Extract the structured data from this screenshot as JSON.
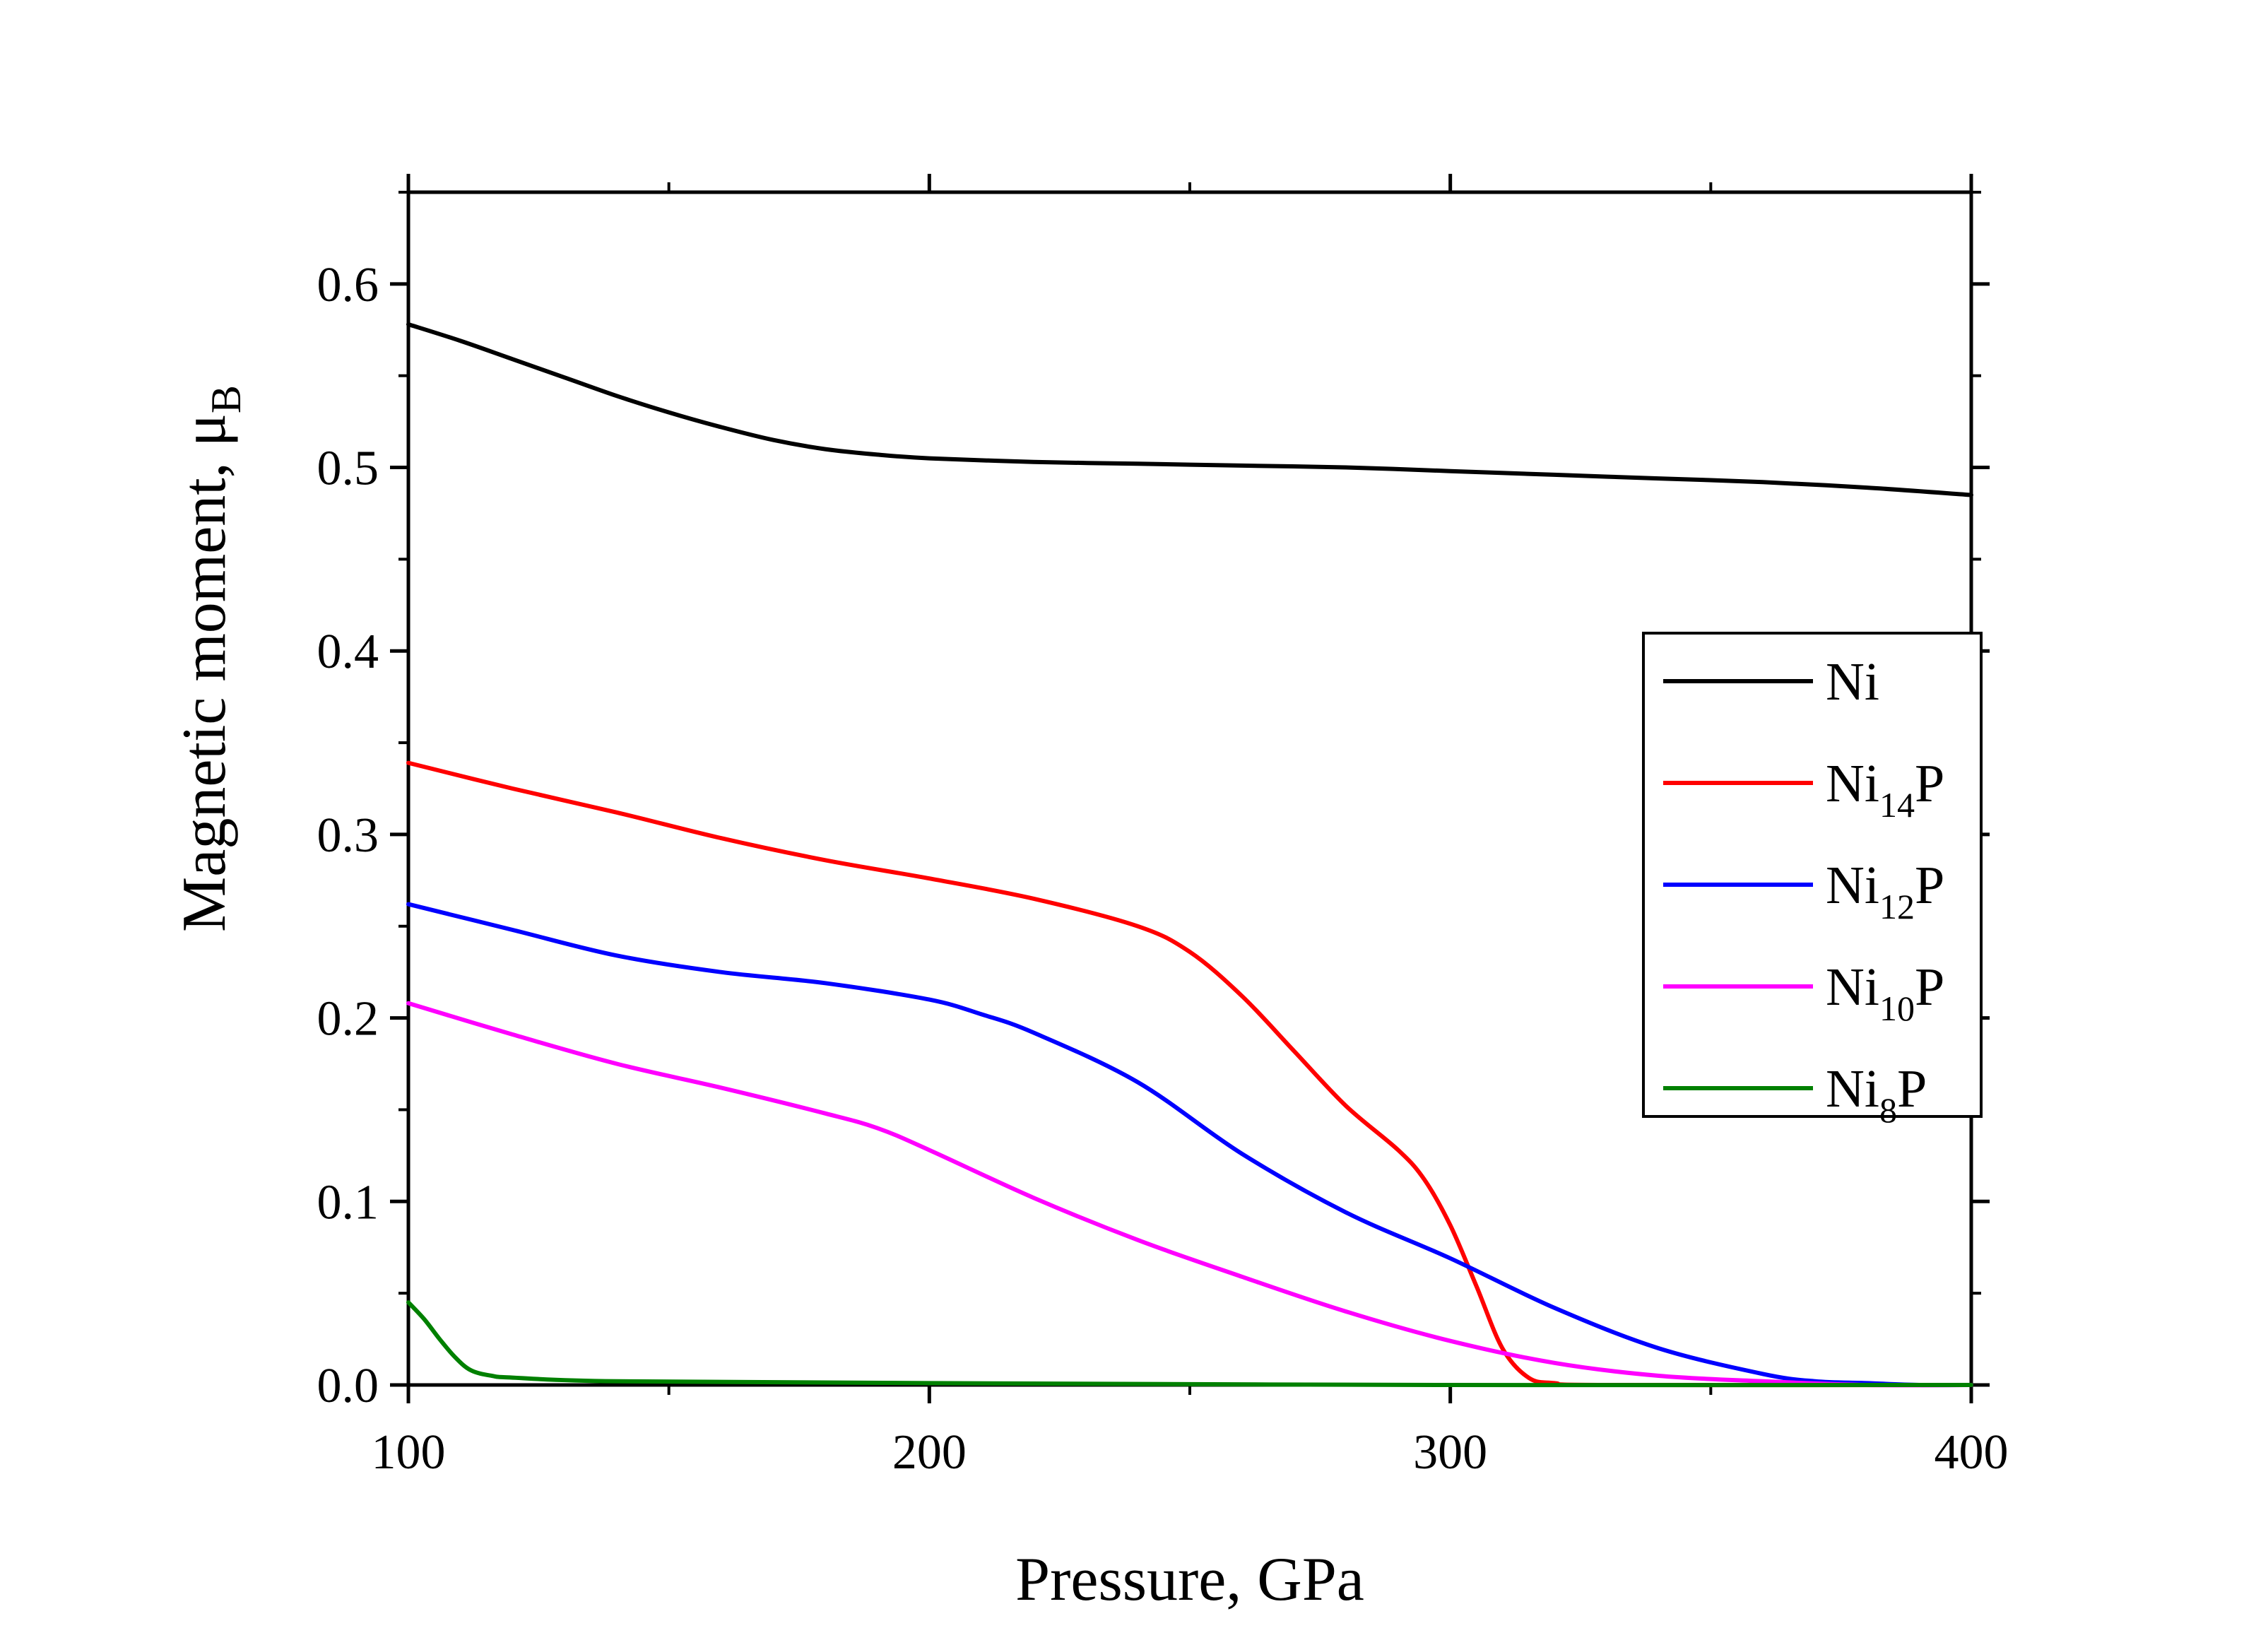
{
  "chart_data": {
    "type": "line",
    "xlabel": "Pressure, GPa",
    "ylabel": "Magnetic moment, μ",
    "ylabel_subscript": "B",
    "xlim": [
      100,
      400
    ],
    "ylim": [
      0,
      0.65
    ],
    "xticks": [
      100,
      200,
      300,
      400
    ],
    "xtick_labels": [
      "100",
      "200",
      "300",
      "400"
    ],
    "yticks": [
      0.0,
      0.1,
      0.2,
      0.3,
      0.4,
      0.5,
      0.6
    ],
    "ytick_labels": [
      "0.0",
      "0.1",
      "0.2",
      "0.3",
      "0.4",
      "0.5",
      "0.6"
    ],
    "grid": false,
    "legend_position": "right",
    "series": [
      {
        "name": "Ni",
        "name_base": "Ni",
        "name_sub": "",
        "name_suffix": "",
        "color": "#000000",
        "x": [
          100,
          110,
          120,
          130,
          140,
          150,
          160,
          170,
          180,
          190,
          200,
          220,
          240,
          260,
          280,
          300,
          320,
          340,
          360,
          380,
          400
        ],
        "y": [
          0.578,
          0.569,
          0.559,
          0.549,
          0.539,
          0.53,
          0.522,
          0.515,
          0.51,
          0.507,
          0.505,
          0.503,
          0.502,
          0.501,
          0.5,
          0.498,
          0.496,
          0.494,
          0.492,
          0.489,
          0.485
        ]
      },
      {
        "name": "Ni14P",
        "name_base": "Ni",
        "name_sub": "14",
        "name_suffix": "P",
        "color": "#ff0000",
        "x": [
          100,
          120,
          140,
          160,
          180,
          200,
          220,
          240,
          250,
          260,
          270,
          280,
          290,
          295,
          300,
          305,
          310,
          315,
          320,
          330,
          400
        ],
        "y": [
          0.339,
          0.325,
          0.312,
          0.298,
          0.286,
          0.276,
          0.265,
          0.25,
          0.236,
          0.212,
          0.182,
          0.152,
          0.128,
          0.112,
          0.087,
          0.054,
          0.02,
          0.004,
          0.001,
          0.0,
          0.0
        ]
      },
      {
        "name": "Ni12P",
        "name_base": "Ni",
        "name_sub": "12",
        "name_suffix": "P",
        "color": "#0000ff",
        "x": [
          100,
          120,
          140,
          160,
          180,
          200,
          210,
          220,
          240,
          260,
          280,
          300,
          320,
          340,
          360,
          370,
          380,
          390,
          400
        ],
        "y": [
          0.262,
          0.248,
          0.234,
          0.225,
          0.219,
          0.21,
          0.202,
          0.192,
          0.165,
          0.126,
          0.094,
          0.069,
          0.042,
          0.02,
          0.006,
          0.002,
          0.001,
          0.0,
          0.0
        ]
      },
      {
        "name": "Ni10P",
        "name_base": "Ni",
        "name_sub": "10",
        "name_suffix": "P",
        "color": "#ff00ff",
        "x": [
          100,
          120,
          140,
          160,
          180,
          190,
          200,
          220,
          240,
          260,
          280,
          300,
          320,
          340,
          360,
          380,
          400
        ],
        "y": [
          0.208,
          0.191,
          0.175,
          0.162,
          0.148,
          0.14,
          0.128,
          0.102,
          0.079,
          0.059,
          0.04,
          0.024,
          0.012,
          0.005,
          0.002,
          0.0,
          0.0
        ]
      },
      {
        "name": "Ni8P",
        "name_base": "Ni",
        "name_sub": "8",
        "name_suffix": "P",
        "color": "#008000",
        "x": [
          100,
          103,
          106,
          109,
          112,
          116,
          120,
          140,
          200,
          300,
          400
        ],
        "y": [
          0.045,
          0.036,
          0.025,
          0.015,
          0.008,
          0.005,
          0.004,
          0.002,
          0.001,
          0.0,
          0.0
        ]
      }
    ]
  }
}
